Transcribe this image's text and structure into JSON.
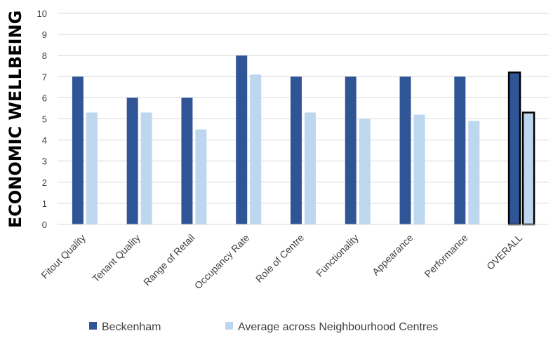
{
  "chart_data": {
    "type": "bar",
    "ylabel": "ECONOMIC WELLBEING",
    "ylim": [
      0,
      10
    ],
    "yticks": [
      "0",
      "1",
      "2",
      "3",
      "4",
      "5",
      "6",
      "7",
      "8",
      "9",
      "10"
    ],
    "categories": [
      "Fitout Quality",
      "Tenant Quality",
      "Range of Retail",
      "Occupancy Rate",
      "Role of Centre",
      "Functionality",
      "Appearance",
      "Performance",
      "OVERALL"
    ],
    "series": [
      {
        "name": "Beckenham",
        "color": "#2F5597",
        "values": [
          7,
          6,
          6,
          8,
          7,
          7,
          7,
          7,
          7.2
        ]
      },
      {
        "name": "Average across Neighbourhood Centres",
        "color": "#BDD7EE",
        "values": [
          5.3,
          5.3,
          4.5,
          7.1,
          5.3,
          5.0,
          5.2,
          4.9,
          5.3
        ]
      }
    ],
    "highlight_category": "OVERALL",
    "grid": true,
    "legend_position": "bottom"
  }
}
